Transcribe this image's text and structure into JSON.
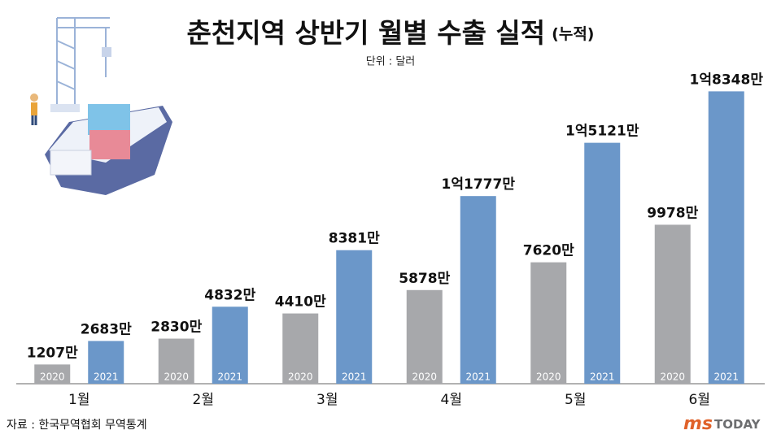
{
  "chart_data": {
    "type": "bar",
    "title": "춘천지역 상반기 월별 수출 실적",
    "title_note": "(누적)",
    "subtitle": "단위 : 달러",
    "source": "자료 : 한국무역협회 무역통계",
    "logo": [
      "ms",
      "TODAY"
    ],
    "categories": [
      "1월",
      "2월",
      "3월",
      "4월",
      "5월",
      "6월"
    ],
    "ylim": [
      0,
      20000
    ],
    "series": [
      {
        "name": "2020",
        "color": "#a7a8ab",
        "values": [
          1207,
          2830,
          4410,
          5878,
          7620,
          9978
        ],
        "value_labels": [
          "1207만",
          "2830만",
          "4410만",
          "5878만",
          "7620만",
          "9978만"
        ]
      },
      {
        "name": "2021",
        "color": "#6b97c9",
        "values": [
          2683,
          4832,
          8381,
          11777,
          15121,
          18348
        ],
        "value_labels": [
          "2683만",
          "4832만",
          "8381만",
          "1억1777만",
          "1억5121만",
          "1억8348만"
        ]
      }
    ]
  }
}
